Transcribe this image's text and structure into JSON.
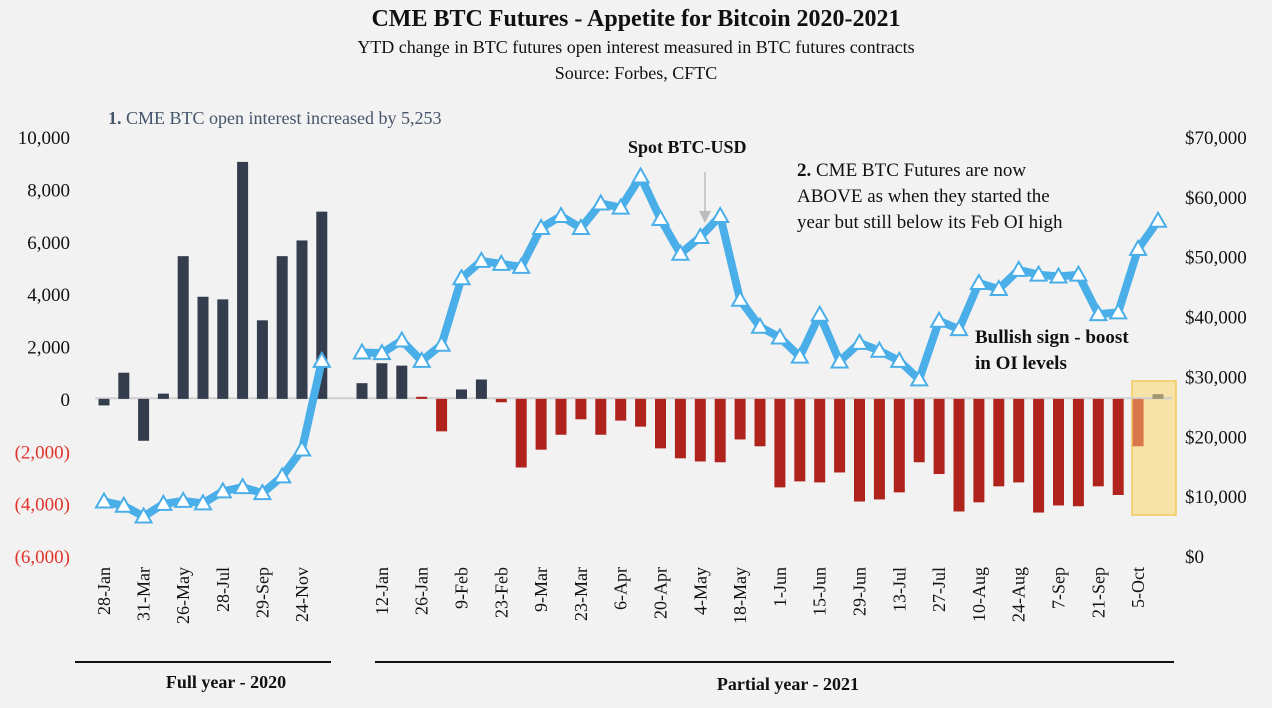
{
  "chart_data": {
    "type": "bar+line",
    "title": "CME BTC Futures - Appetite for Bitcoin 2020-2021",
    "subtitle": "YTD change in BTC futures open interest measured in BTC futures contracts",
    "source": "Source: Forbes, CFTC",
    "y_left": {
      "range": [
        -6000,
        10000
      ],
      "ticks": [
        "10,000",
        "8,000",
        "6,000",
        "4,000",
        "2,000",
        "0",
        "(2,000)",
        "(4,000)",
        "(6,000)"
      ],
      "tick_values": [
        10000,
        8000,
        6000,
        4000,
        2000,
        0,
        -2000,
        -4000,
        -6000
      ]
    },
    "y_right": {
      "range": [
        0,
        70000
      ],
      "ticks": [
        "$70,000",
        "$60,000",
        "$50,000",
        "$40,000",
        "$30,000",
        "$20,000",
        "$10,000",
        "$0"
      ],
      "tick_values": [
        70000,
        60000,
        50000,
        40000,
        30000,
        20000,
        10000,
        0
      ]
    },
    "grid": false,
    "colors": {
      "positive_bar": "#333d4d",
      "negative_bar": "#b0231d",
      "line": "#4aaee8",
      "highlight_box": "#f7e3a8",
      "highlight_border": "#f0c95a",
      "negative_tick": "#e0332b",
      "current_neg": "#d9774a",
      "current_pos": "#a39772"
    },
    "groups": [
      {
        "label": "Full year - 2020",
        "xtick_labels": [
          "28-Jan",
          "31-Mar",
          "26-May",
          "28-Jul",
          "29-Sep",
          "24-Nov"
        ],
        "oi_change": [
          -250,
          1000,
          -1600,
          200,
          5450,
          3900,
          3800,
          9050,
          3000,
          5450,
          6050,
          7150
        ],
        "spot_btc_usd": [
          9100,
          8400,
          6600,
          8700,
          9200,
          8800,
          10800,
          11500,
          10500,
          13300,
          17800,
          32600
        ]
      },
      {
        "label": "Partial year - 2021",
        "xtick_labels": [
          "12-Jan",
          "26-Jan",
          "9-Feb",
          "23-Feb",
          "9-Mar",
          "23-Mar",
          "6-Apr",
          "20-Apr",
          "4-May",
          "18-May",
          "1-Jun",
          "15-Jun",
          "29-Jun",
          "13-Jul",
          "27-Jul",
          "10-Aug",
          "24-Aug",
          "7-Sep",
          "21-Sep",
          "5-Oct"
        ],
        "oi_change": [
          600,
          1360,
          1270,
          80,
          -1240,
          360,
          740,
          -130,
          -2620,
          -1940,
          -1370,
          -780,
          -1370,
          -830,
          -1060,
          -1890,
          -2270,
          -2390,
          -2420,
          -1550,
          -1810,
          -3380,
          -3150,
          -3190,
          -2810,
          -3920,
          -3840,
          -3570,
          -2420,
          -2870,
          -4300,
          -3950,
          -3340,
          -3190,
          -4340,
          -4070,
          -4100,
          -3340,
          -3670,
          -1810,
          180
        ],
        "bar_color_keys": [
          "positive_bar",
          "positive_bar",
          "positive_bar",
          "negative_bar",
          "negative_bar",
          "positive_bar",
          "positive_bar",
          "negative_bar",
          "negative_bar",
          "negative_bar",
          "negative_bar",
          "negative_bar",
          "negative_bar",
          "negative_bar",
          "negative_bar",
          "negative_bar",
          "negative_bar",
          "negative_bar",
          "negative_bar",
          "negative_bar",
          "negative_bar",
          "negative_bar",
          "negative_bar",
          "negative_bar",
          "negative_bar",
          "negative_bar",
          "negative_bar",
          "negative_bar",
          "negative_bar",
          "negative_bar",
          "negative_bar",
          "negative_bar",
          "negative_bar",
          "negative_bar",
          "negative_bar",
          "negative_bar",
          "negative_bar",
          "negative_bar",
          "negative_bar",
          "current_neg",
          "current_pos"
        ],
        "spot_btc_usd": [
          34000,
          33900,
          36000,
          32600,
          35300,
          46400,
          49300,
          48800,
          48300,
          54800,
          56800,
          54800,
          58900,
          58200,
          63400,
          56300,
          50500,
          53300,
          56800,
          42800,
          38300,
          36500,
          33300,
          40300,
          32500,
          35600,
          34300,
          32600,
          29500,
          39300,
          37900,
          45600,
          44600,
          47800,
          47000,
          46700,
          47000,
          40400,
          40700,
          51300,
          56000
        ]
      }
    ],
    "annotations": {
      "note1_num": "1.",
      "note1_text": " CME BTC open interest increased by 5,253",
      "spot_label": "Spot BTC-USD",
      "note2_num": "2.",
      "note2_lines": [
        " CME BTC Futures are now",
        "ABOVE as when they started the",
        "year but still below its Feb OI high"
      ],
      "bullish_lines": [
        "Bullish sign - boost",
        "in OI levels"
      ]
    }
  }
}
